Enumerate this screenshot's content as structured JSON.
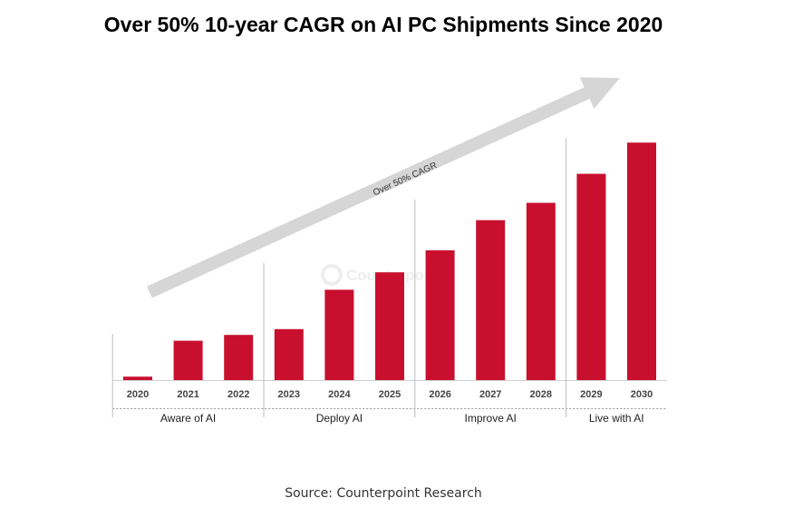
{
  "title": "Over 50% 10-year CAGR on AI PC Shipments Since 2020",
  "source": "Source: Counterpoint Research",
  "watermark": "Counterpoint",
  "chart_data": {
    "type": "bar",
    "title": "Over 50% 10-year CAGR on AI PC Shipments Since 2020",
    "xlabel": "",
    "ylabel": "",
    "categories": [
      "2020",
      "2021",
      "2022",
      "2023",
      "2024",
      "2025",
      "2026",
      "2027",
      "2028",
      "2029",
      "2030"
    ],
    "values": [
      1.5,
      17,
      19.5,
      22,
      39,
      46.5,
      56,
      69,
      76.5,
      89,
      102.5
    ],
    "ylim": [
      0,
      110
    ],
    "bar_color": "#c8102e",
    "grid": false,
    "phases": [
      {
        "label": "Aware of AI",
        "start": 0,
        "end": 2
      },
      {
        "label": "Deploy AI",
        "start": 3,
        "end": 5
      },
      {
        "label": "Improve AI",
        "start": 6,
        "end": 8
      },
      {
        "label": "Live with AI",
        "start": 9,
        "end": 10
      }
    ],
    "annotation": "Over 50% CAGR"
  }
}
